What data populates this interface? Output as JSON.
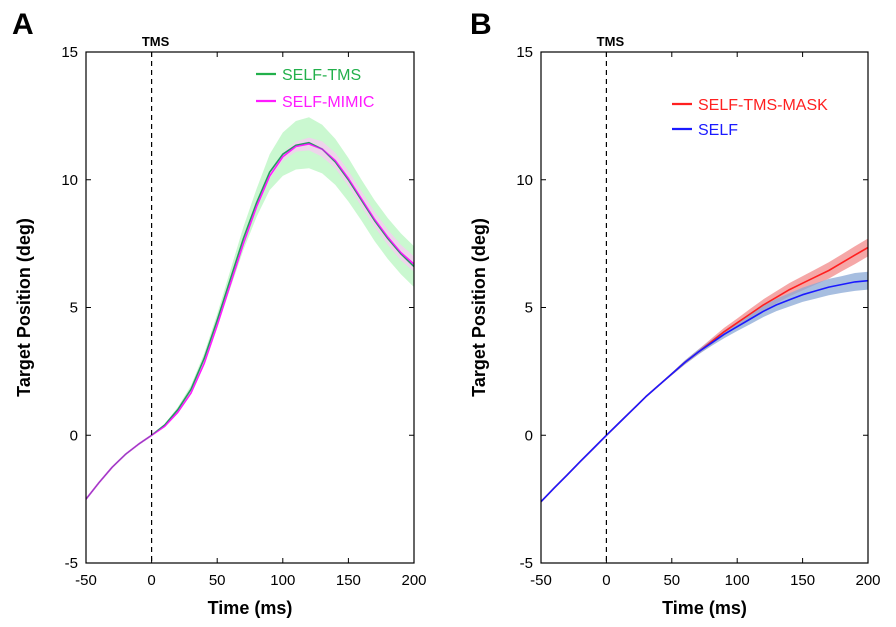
{
  "chart_data": [
    {
      "type": "line",
      "panel_label": "A",
      "xlabel": "Time (ms)",
      "ylabel": "Target Position (deg)",
      "xlim": [
        -50,
        200
      ],
      "ylim": [
        -5,
        15
      ],
      "xticks": [
        -50,
        0,
        50,
        100,
        150,
        200
      ],
      "yticks": [
        -5,
        0,
        5,
        10,
        15
      ],
      "grid": false,
      "legend_position": "top-right",
      "vline": {
        "x": 0,
        "label": "TMS",
        "style": "dashed"
      },
      "x": [
        -50,
        -40,
        -30,
        -20,
        -10,
        0,
        10,
        20,
        30,
        40,
        50,
        60,
        70,
        80,
        90,
        100,
        110,
        120,
        130,
        140,
        150,
        160,
        170,
        180,
        190,
        200
      ],
      "series": [
        {
          "name": "SELF-TMS",
          "color": "#22b04b",
          "band_color": "#b8f5c0",
          "values": [
            -2.5,
            -1.85,
            -1.25,
            -0.75,
            -0.35,
            0.0,
            0.4,
            1.0,
            1.8,
            3.0,
            4.5,
            6.1,
            7.7,
            9.1,
            10.3,
            11.0,
            11.35,
            11.45,
            11.2,
            10.7,
            10.0,
            9.2,
            8.4,
            7.7,
            7.1,
            6.6
          ],
          "band": [
            0.0,
            0.0,
            0.0,
            0.0,
            0.0,
            0.0,
            0.05,
            0.1,
            0.15,
            0.2,
            0.25,
            0.35,
            0.45,
            0.55,
            0.7,
            0.85,
            0.95,
            1.0,
            0.95,
            0.9,
            0.85,
            0.8,
            0.8,
            0.8,
            0.8,
            0.8
          ]
        },
        {
          "name": "SELF-MIMIC",
          "color": "#ff1aff",
          "band_color": "#f9c8f4",
          "values": [
            -2.5,
            -1.85,
            -1.25,
            -0.75,
            -0.35,
            0.0,
            0.35,
            0.9,
            1.65,
            2.8,
            4.3,
            5.9,
            7.5,
            8.95,
            10.15,
            10.9,
            11.3,
            11.4,
            11.2,
            10.75,
            10.05,
            9.25,
            8.45,
            7.75,
            7.15,
            6.7
          ],
          "band": [
            0.0,
            0.0,
            0.0,
            0.0,
            0.0,
            0.0,
            0.0,
            0.05,
            0.05,
            0.05,
            0.05,
            0.05,
            0.05,
            0.1,
            0.1,
            0.15,
            0.2,
            0.25,
            0.3,
            0.3,
            0.3,
            0.3,
            0.3,
            0.3,
            0.3,
            0.3
          ]
        }
      ]
    },
    {
      "type": "line",
      "panel_label": "B",
      "xlabel": "Time (ms)",
      "ylabel": "Target Position (deg)",
      "xlim": [
        -50,
        200
      ],
      "ylim": [
        -5,
        15
      ],
      "xticks": [
        -50,
        0,
        50,
        100,
        150,
        200
      ],
      "yticks": [
        -5,
        0,
        5,
        10,
        15
      ],
      "grid": false,
      "legend_position": "top-right",
      "vline": {
        "x": 0,
        "label": "TMS",
        "style": "dashed"
      },
      "x": [
        -50,
        -40,
        -30,
        -20,
        -10,
        0,
        10,
        20,
        30,
        40,
        50,
        60,
        70,
        80,
        90,
        100,
        110,
        120,
        130,
        140,
        150,
        160,
        170,
        180,
        190,
        200
      ],
      "series": [
        {
          "name": "SELF-TMS-MASK",
          "color": "#ff2020",
          "band_color": "#f28a8a",
          "values": [
            -2.6,
            -2.07,
            -1.55,
            -1.03,
            -0.52,
            0.0,
            0.5,
            1.0,
            1.5,
            1.95,
            2.4,
            2.85,
            3.25,
            3.65,
            4.05,
            4.4,
            4.75,
            5.1,
            5.4,
            5.7,
            5.95,
            6.2,
            6.45,
            6.75,
            7.05,
            7.35
          ],
          "band": [
            0.0,
            0.0,
            0.0,
            0.0,
            0.0,
            0.0,
            0.0,
            0.0,
            0.0,
            0.03,
            0.05,
            0.08,
            0.1,
            0.12,
            0.15,
            0.17,
            0.2,
            0.22,
            0.24,
            0.26,
            0.28,
            0.3,
            0.32,
            0.33,
            0.35,
            0.35
          ]
        },
        {
          "name": "SELF",
          "color": "#1a1aff",
          "band_color": "#8aa8d6",
          "values": [
            -2.6,
            -2.07,
            -1.55,
            -1.03,
            -0.52,
            0.0,
            0.5,
            1.0,
            1.5,
            1.95,
            2.4,
            2.85,
            3.25,
            3.6,
            3.95,
            4.25,
            4.55,
            4.85,
            5.1,
            5.3,
            5.5,
            5.65,
            5.8,
            5.9,
            6.0,
            6.05
          ],
          "band": [
            0.0,
            0.0,
            0.0,
            0.0,
            0.0,
            0.0,
            0.0,
            0.0,
            0.0,
            0.03,
            0.05,
            0.08,
            0.1,
            0.12,
            0.15,
            0.17,
            0.2,
            0.22,
            0.24,
            0.26,
            0.28,
            0.3,
            0.32,
            0.33,
            0.35,
            0.35
          ]
        }
      ]
    }
  ]
}
